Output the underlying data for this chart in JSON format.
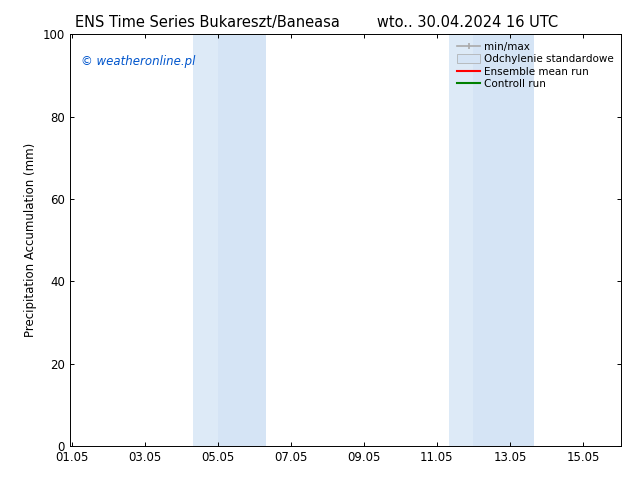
{
  "title_left": "ENS Time Series Bukareszt/Baneasa",
  "title_right": "wto.. 30.04.2024 16 UTC",
  "ylabel": "Precipitation Accumulation (mm)",
  "xtick_labels": [
    "01.05",
    "03.05",
    "05.05",
    "07.05",
    "09.05",
    "11.05",
    "13.05",
    "15.05"
  ],
  "xtick_positions": [
    0,
    2,
    4,
    6,
    8,
    10,
    12,
    14
  ],
  "ylim": [
    0,
    100
  ],
  "ytick_positions": [
    0,
    20,
    40,
    60,
    80,
    100
  ],
  "ytick_labels": [
    "0",
    "20",
    "40",
    "60",
    "80",
    "100"
  ],
  "bg_color": "#ffffff",
  "plot_bg_color": "#ffffff",
  "shaded_regions": [
    {
      "x_start": 3.33,
      "x_end": 4.0,
      "color": "#ddeaf7"
    },
    {
      "x_start": 4.0,
      "x_end": 5.33,
      "color": "#d5e4f5"
    },
    {
      "x_start": 10.33,
      "x_end": 11.0,
      "color": "#ddeaf7"
    },
    {
      "x_start": 11.0,
      "x_end": 12.67,
      "color": "#d5e4f5"
    }
  ],
  "legend_entries": [
    {
      "label": "min/max",
      "color": "#aaaaaa",
      "style": "line_with_cap"
    },
    {
      "label": "Odchylenie standardowe",
      "color": "#d5e4f5",
      "style": "filled_box"
    },
    {
      "label": "Ensemble mean run",
      "color": "#ff0000",
      "style": "line"
    },
    {
      "label": "Controll run",
      "color": "#008000",
      "style": "line"
    }
  ],
  "watermark_text": "© weatheronline.pl",
  "watermark_color": "#0055cc",
  "title_fontsize": 10.5,
  "axis_fontsize": 8.5,
  "tick_fontsize": 8.5,
  "legend_fontsize": 7.5
}
